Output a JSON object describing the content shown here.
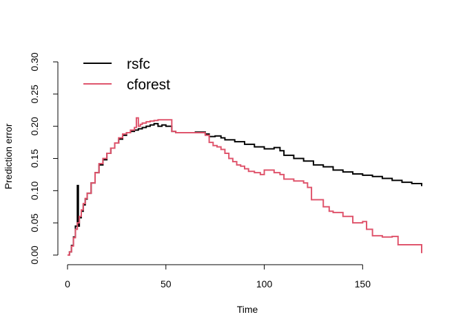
{
  "chart_data": {
    "type": "line",
    "step": true,
    "title": "",
    "xlabel": "Time",
    "ylabel": "Prediction error",
    "xlim": [
      0,
      180
    ],
    "ylim": [
      0,
      0.3
    ],
    "xticks": [
      0,
      50,
      100,
      150
    ],
    "xtick_labels": [
      "0",
      "50",
      "100",
      "150"
    ],
    "yticks": [
      0,
      0.05,
      0.1,
      0.15,
      0.2,
      0.25,
      0.3
    ],
    "ytick_labels": [
      "0.00",
      "0.05",
      "0.10",
      "0.15",
      "0.20",
      "0.25",
      "0.30"
    ],
    "grid": false,
    "legend": "top-left",
    "series": [
      {
        "name": "rsfc",
        "color": "#000000",
        "x": [
          0,
          1,
          2,
          3,
          4,
          5,
          5,
          5.5,
          6,
          7,
          8,
          9,
          10,
          12,
          14,
          16,
          18,
          20,
          22,
          24,
          26,
          28,
          30,
          32,
          34,
          36,
          38,
          40,
          42,
          44,
          46,
          48,
          50,
          52,
          53,
          55,
          60,
          65,
          70,
          72,
          75,
          78,
          80,
          85,
          90,
          95,
          100,
          105,
          108,
          110,
          115,
          120,
          125,
          130,
          135,
          140,
          145,
          150,
          155,
          160,
          165,
          170,
          175,
          179,
          180
        ],
        "y": [
          0,
          0.005,
          0.015,
          0.028,
          0.045,
          0.06,
          0.108,
          0.045,
          0.058,
          0.068,
          0.078,
          0.087,
          0.096,
          0.112,
          0.128,
          0.14,
          0.148,
          0.158,
          0.166,
          0.174,
          0.18,
          0.186,
          0.19,
          0.192,
          0.194,
          0.196,
          0.198,
          0.2,
          0.202,
          0.204,
          0.2,
          0.202,
          0.2,
          0.2,
          0.192,
          0.19,
          0.19,
          0.191,
          0.188,
          0.184,
          0.185,
          0.182,
          0.179,
          0.176,
          0.172,
          0.168,
          0.165,
          0.167,
          0.162,
          0.155,
          0.15,
          0.146,
          0.14,
          0.137,
          0.132,
          0.129,
          0.126,
          0.124,
          0.122,
          0.119,
          0.116,
          0.113,
          0.111,
          0.111,
          0.107
        ]
      },
      {
        "name": "cforest",
        "color": "#DF536B",
        "x": [
          0,
          1,
          2,
          3,
          4,
          5,
          6,
          7,
          8,
          9,
          10,
          12,
          14,
          16,
          18,
          20,
          22,
          24,
          26,
          28,
          30,
          32,
          34,
          35,
          36,
          37,
          38,
          40,
          42,
          44,
          46,
          48,
          50,
          52,
          53,
          55,
          60,
          65,
          70,
          72,
          74,
          76,
          78,
          80,
          82,
          84,
          86,
          88,
          90,
          92,
          95,
          98,
          100,
          105,
          108,
          110,
          115,
          120,
          122,
          124,
          126,
          130,
          133,
          135,
          140,
          145,
          150,
          152,
          155,
          160,
          165,
          168,
          170,
          175,
          179,
          180
        ],
        "y": [
          0,
          0.005,
          0.014,
          0.027,
          0.04,
          0.05,
          0.06,
          0.07,
          0.08,
          0.088,
          0.096,
          0.112,
          0.128,
          0.142,
          0.15,
          0.158,
          0.166,
          0.174,
          0.182,
          0.188,
          0.19,
          0.194,
          0.198,
          0.213,
          0.2,
          0.203,
          0.205,
          0.207,
          0.208,
          0.209,
          0.21,
          0.21,
          0.21,
          0.21,
          0.192,
          0.19,
          0.19,
          0.19,
          0.186,
          0.175,
          0.17,
          0.168,
          0.164,
          0.158,
          0.15,
          0.145,
          0.14,
          0.138,
          0.134,
          0.13,
          0.128,
          0.125,
          0.132,
          0.128,
          0.125,
          0.118,
          0.115,
          0.112,
          0.105,
          0.086,
          0.086,
          0.075,
          0.068,
          0.066,
          0.06,
          0.05,
          0.052,
          0.04,
          0.03,
          0.028,
          0.029,
          0.016,
          0.016,
          0.016,
          0.016,
          0.003
        ]
      }
    ]
  }
}
